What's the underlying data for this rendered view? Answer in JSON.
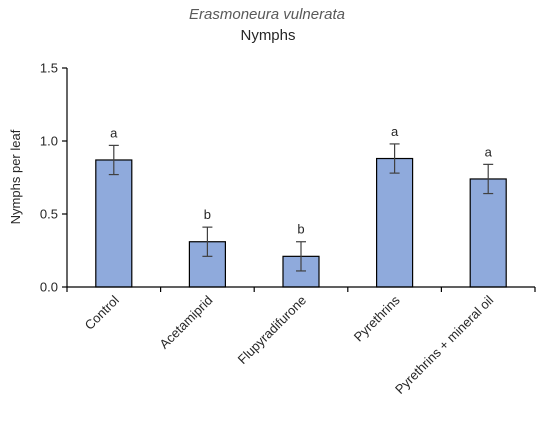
{
  "chart_data": {
    "type": "bar",
    "title": "Erasmoneura vulnerata",
    "subtitle": "Nymphs",
    "ylabel": "Nymphs per leaf",
    "xlabel": "",
    "ylim": [
      0,
      1.5
    ],
    "yticks": [
      "0.0",
      "0.5",
      "1.0",
      "1.5"
    ],
    "ytick_values": [
      0,
      0.5,
      1.0,
      1.5
    ],
    "grid": false,
    "bar_color": "#8FAADC",
    "categories": [
      "Control",
      "Acetamiprid",
      "Flupyradifurone",
      "Pyrethrins",
      "Pyrethrins + mineral oil"
    ],
    "values": [
      0.87,
      0.31,
      0.21,
      0.88,
      0.74
    ],
    "errors": [
      0.1,
      0.1,
      0.1,
      0.1,
      0.1
    ],
    "significance": [
      "a",
      "b",
      "b",
      "a",
      "a"
    ]
  }
}
